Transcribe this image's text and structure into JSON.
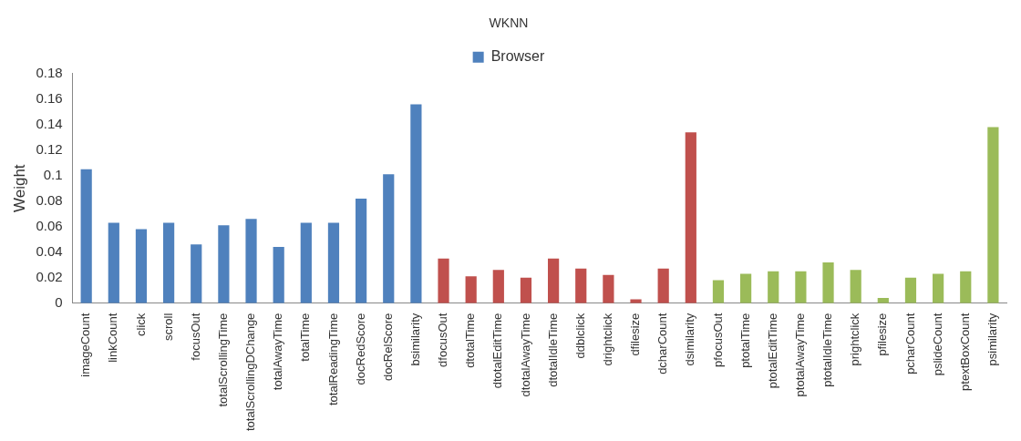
{
  "chart_data": {
    "type": "bar",
    "title": "WKNN",
    "ylabel": "Weight",
    "categories": [
      "imageCount",
      "linkCount",
      "click",
      "scroll",
      "focusOut",
      "totalScrollingTime",
      "totalScrollingDChange",
      "totalAwayTime",
      "totalTime",
      "totalReadingTime",
      "docRedScore",
      "docRelScore",
      "bsimilarity",
      "dfocusOut",
      "dtotalTime",
      "dtotalEditTime",
      "dtotalAwayTime",
      "dtotalIdleTime",
      "ddblclick",
      "drightclick",
      "dfilesize",
      "dcharCount",
      "dsimilarity",
      "pfocusOut",
      "ptotalTime",
      "ptotalEditTime",
      "ptotalAwayTime",
      "ptotalIdleTime",
      "prightclick",
      "pfilesize",
      "pcharCount",
      "pslideCount",
      "ptextBoxCount",
      "psimilarity"
    ],
    "series": [
      {
        "name": "Browser",
        "color": "#4f81bd",
        "values": [
          0.105,
          0.063,
          0.058,
          0.063,
          0.046,
          0.061,
          0.066,
          0.044,
          0.063,
          0.063,
          0.082,
          0.101,
          0.156,
          null,
          null,
          null,
          null,
          null,
          null,
          null,
          null,
          null,
          null,
          null,
          null,
          null,
          null,
          null,
          null,
          null,
          null,
          null,
          null,
          null
        ]
      },
      {
        "color": "#c0504d",
        "values": [
          null,
          null,
          null,
          null,
          null,
          null,
          null,
          null,
          null,
          null,
          null,
          null,
          null,
          0.035,
          0.021,
          0.026,
          0.02,
          0.035,
          0.027,
          0.022,
          0.003,
          0.027,
          0.134,
          null,
          null,
          null,
          null,
          null,
          null,
          null,
          null,
          null,
          null,
          null
        ]
      },
      {
        "color": "#9bbb59",
        "values": [
          null,
          null,
          null,
          null,
          null,
          null,
          null,
          null,
          null,
          null,
          null,
          null,
          null,
          null,
          null,
          null,
          null,
          null,
          null,
          null,
          null,
          null,
          null,
          0.018,
          0.023,
          0.025,
          0.025,
          0.032,
          0.026,
          0.004,
          0.02,
          0.023,
          0.025,
          0.138
        ]
      }
    ],
    "ylim": [
      0,
      0.18
    ],
    "yticks": [
      0,
      0.02,
      0.04,
      0.06,
      0.08,
      0.1,
      0.12,
      0.14,
      0.16,
      0.18
    ],
    "grid": false,
    "legend": "top"
  }
}
